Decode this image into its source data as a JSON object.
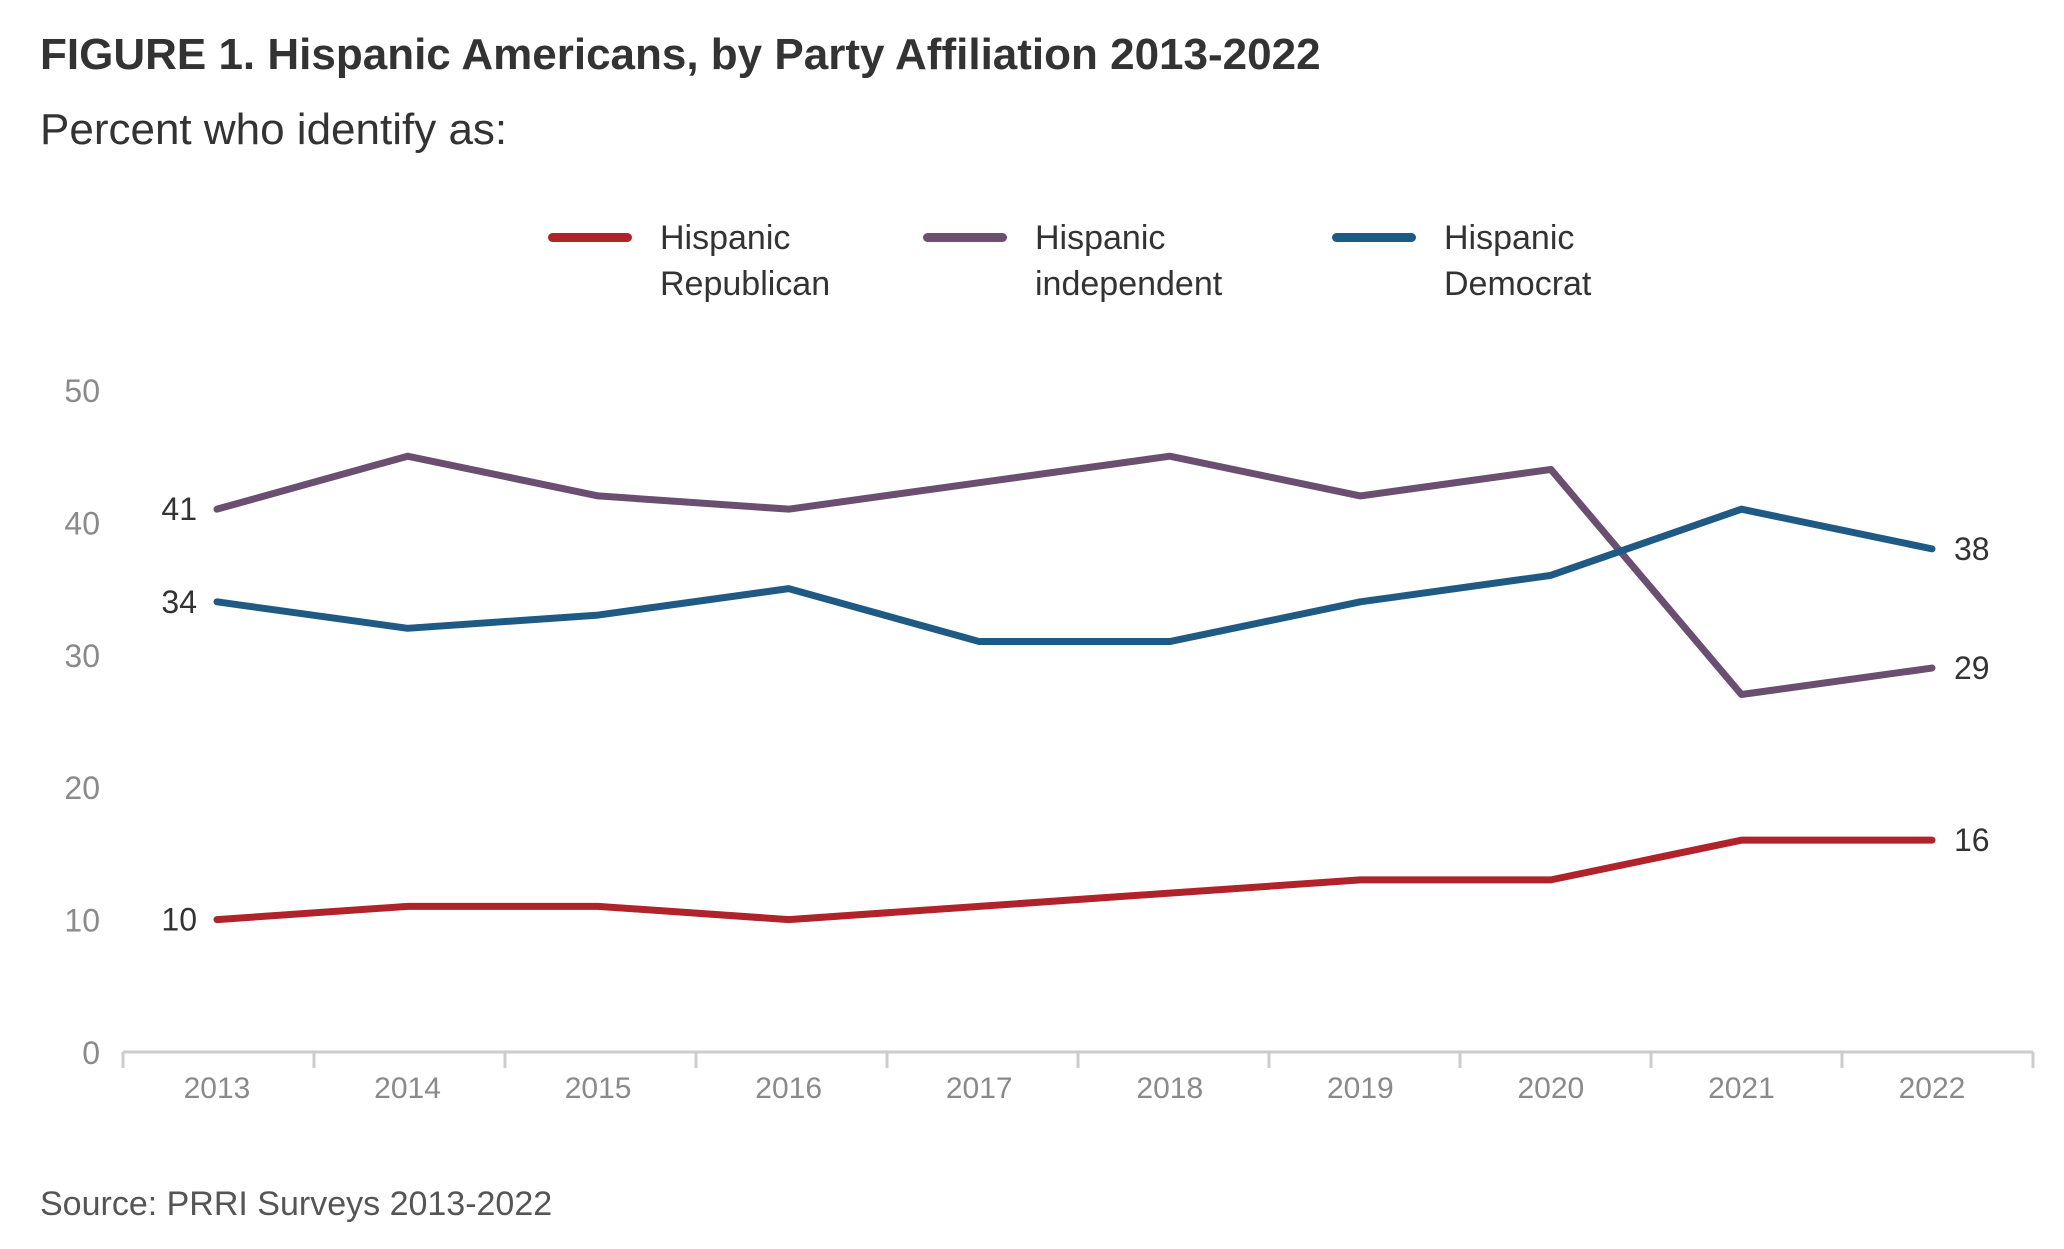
{
  "title": "FIGURE 1. Hispanic Americans, by Party Affiliation 2013-2022",
  "subtitle": "Percent who identify as:",
  "source": "Source: PRRI Surveys 2013-2022",
  "chart_data": {
    "type": "line",
    "title": "FIGURE 1. Hispanic Americans, by Party Affiliation 2013-2022",
    "subtitle": "Percent who identify as:",
    "x": [
      "2013",
      "2014",
      "2015",
      "2016",
      "2017",
      "2018",
      "2019",
      "2020",
      "2021",
      "2022"
    ],
    "ylim": [
      0,
      50
    ],
    "yticks": [
      0,
      10,
      20,
      30,
      40,
      50
    ],
    "grid": false,
    "legend": "top",
    "series": [
      {
        "name": "Hispanic Republican",
        "legend_label": "Hispanic\nRepublican",
        "color": "#B0232A",
        "values": [
          10,
          11,
          11,
          10,
          11,
          12,
          13,
          13,
          16,
          16
        ],
        "start_label": "10",
        "end_label": "16"
      },
      {
        "name": "Hispanic independent",
        "legend_label": "Hispanic\nindependent",
        "color": "#6B4F70",
        "values": [
          41,
          45,
          42,
          41,
          43,
          45,
          42,
          44,
          27,
          29
        ],
        "start_label": "41",
        "end_label": "29"
      },
      {
        "name": "Hispanic Democrat",
        "legend_label": "Hispanic\nDemocrat",
        "color": "#1F5A84",
        "values": [
          34,
          32,
          33,
          35,
          31,
          31,
          34,
          36,
          41,
          38
        ],
        "start_label": "34",
        "end_label": "38"
      }
    ]
  }
}
